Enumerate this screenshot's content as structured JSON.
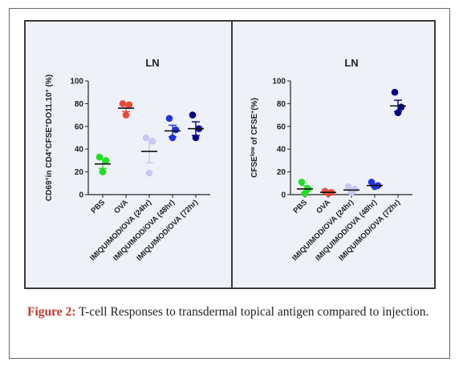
{
  "figure": {
    "label": "Figure 2:",
    "caption": "T-cell Responses to transdermal topical antigen compared to injection."
  },
  "chart_data": [
    {
      "type": "scatter",
      "title": "LN",
      "ylabel": "CD69+in CD4+CFSE+DO11.10+ (%)",
      "ylim": [
        0,
        100
      ],
      "yticks": [
        0,
        20,
        40,
        60,
        80,
        100
      ],
      "categories": [
        "PBS",
        "OVA",
        "IMIQUIMOD/OVA (24hr)",
        "IMIQUIMOD/OVA (48hr)",
        "IMIQUIMOD/OVA (72hr)"
      ],
      "colors": [
        "#22dd22",
        "#e84c3d",
        "#c8c8f0",
        "#2233dd",
        "#000088"
      ],
      "series": [
        {
          "points": [
            33,
            30,
            20
          ],
          "mean": 27,
          "sem": 4
        },
        {
          "points": [
            80,
            79,
            70
          ],
          "mean": 76,
          "sem": 3
        },
        {
          "points": [
            50,
            47,
            19
          ],
          "mean": 38,
          "sem": 10
        },
        {
          "points": [
            67,
            57,
            50
          ],
          "mean": 56,
          "sem": 5
        },
        {
          "points": [
            70,
            58,
            50
          ],
          "mean": 58,
          "sem": 6
        }
      ]
    },
    {
      "type": "scatter",
      "title": "LN",
      "ylabel": "CFSElow of CFSE+(%)",
      "ylim": [
        0,
        100
      ],
      "yticks": [
        0,
        20,
        40,
        60,
        80,
        100
      ],
      "categories": [
        "PBS",
        "OVA",
        "IMIQUIMOD/OVA (24hr)",
        "IMIQUIMOD/OVA (48hr)",
        "IMIQUIMOD/OVA (72hr)"
      ],
      "colors": [
        "#22dd22",
        "#e84c3d",
        "#c8c8f0",
        "#2233dd",
        "#000088"
      ],
      "series": [
        {
          "points": [
            11,
            5,
            1
          ],
          "mean": 5,
          "sem": 3
        },
        {
          "points": [
            3,
            2,
            1
          ],
          "mean": 2,
          "sem": 1
        },
        {
          "points": [
            7,
            5,
            2
          ],
          "mean": 4,
          "sem": 2
        },
        {
          "points": [
            11,
            8,
            7
          ],
          "mean": 8,
          "sem": 1
        },
        {
          "points": [
            90,
            77,
            72
          ],
          "mean": 78,
          "sem": 5
        }
      ]
    }
  ]
}
